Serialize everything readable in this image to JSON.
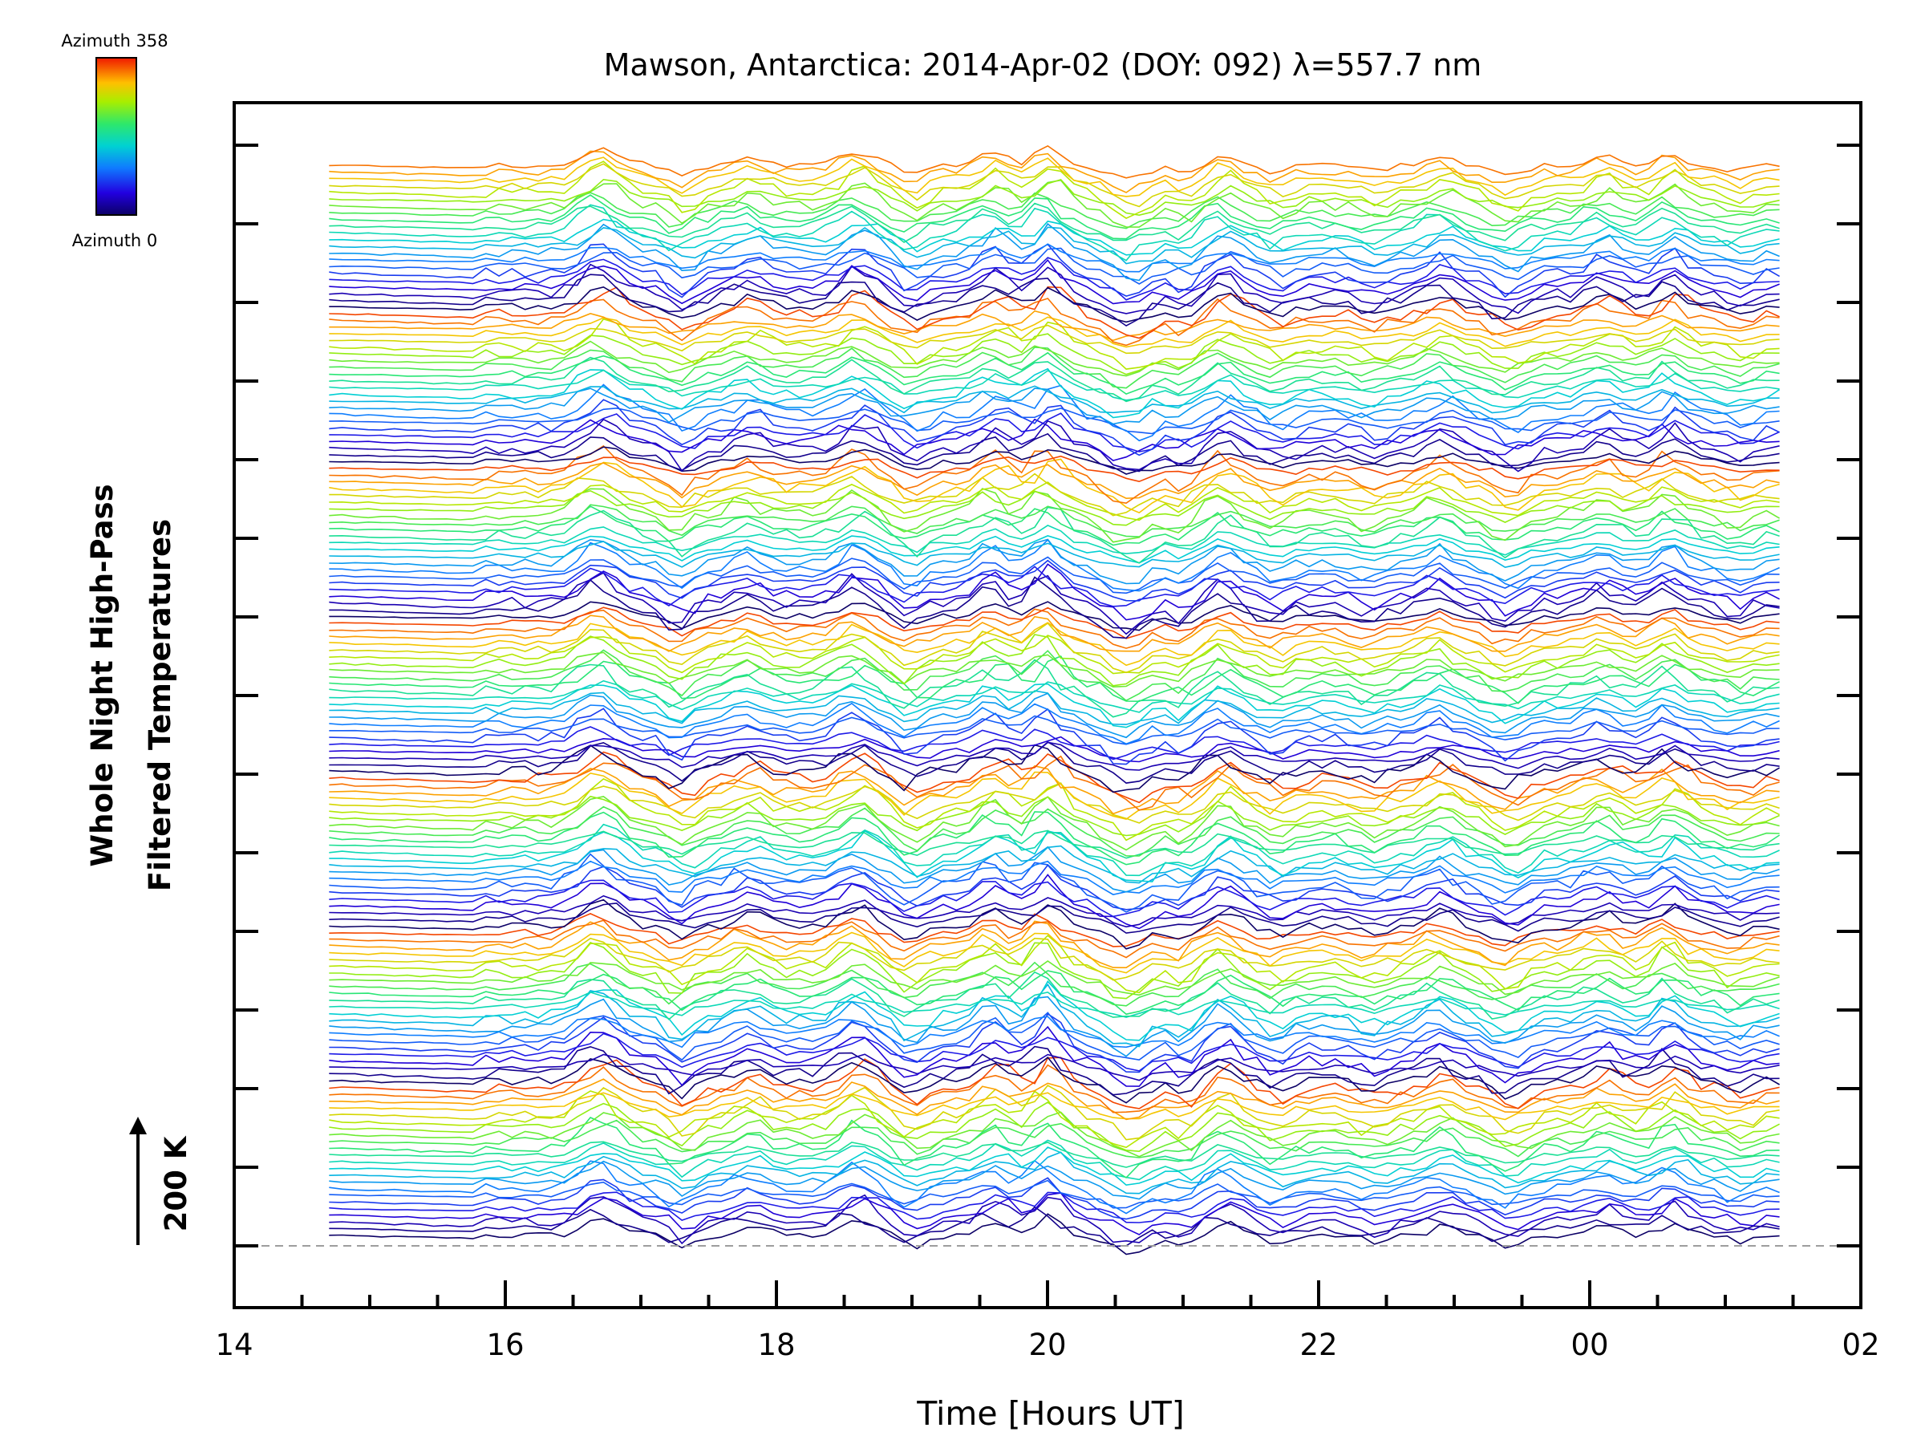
{
  "chart_data": {
    "type": "line",
    "title": "Mawson, Antarctica: 2014-Apr-02 (DOY: 092) λ=557.7 nm",
    "xlabel": "Time [Hours UT]",
    "ylabel_lines": [
      "Whole Night High-Pass",
      "Filtered Temperatures"
    ],
    "x_range_hours": [
      14,
      26
    ],
    "x_tick_labels": [
      "14",
      "16",
      "18",
      "20",
      "22",
      "00",
      "02"
    ],
    "data_x_range_hours": [
      14.7,
      25.4
    ],
    "num_traces": 160,
    "y_ticks_count": 15,
    "scale_bar_label": "200 K",
    "colorbar": {
      "top_label": "Azimuth 358",
      "bottom_label": "Azimuth 0",
      "azimuth_min": 0,
      "azimuth_max": 358,
      "colormap": "rainbow"
    },
    "baseline_style": "dashed",
    "baseline_color": "#9e9e9e"
  }
}
